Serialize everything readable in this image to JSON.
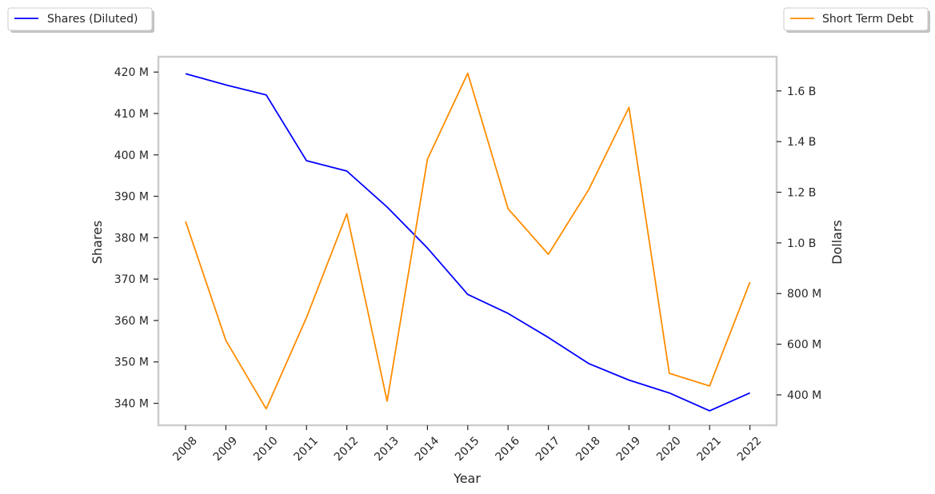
{
  "chart_data": {
    "type": "line",
    "xlabel": "Year",
    "x": [
      "2008",
      "2009",
      "2010",
      "2011",
      "2012",
      "2013",
      "2014",
      "2015",
      "2016",
      "2017",
      "2018",
      "2019",
      "2020",
      "2021",
      "2022"
    ],
    "grid": false,
    "series": [
      {
        "name": "Shares (Diluted)",
        "axis": "left",
        "color": "#0000ff",
        "values": [
          419600000,
          416900000,
          414500000,
          398600000,
          396100000,
          387400000,
          377500000,
          366300000,
          361700000,
          355900000,
          349600000,
          345600000,
          342500000,
          338200000,
          342500000
        ]
      },
      {
        "name": "Short Term Debt",
        "axis": "right",
        "color": "#ff8c00",
        "values": [
          1085000000,
          615000000,
          345000000,
          705000000,
          1115000000,
          375000000,
          1330000000,
          1670000000,
          1135000000,
          955000000,
          1210000000,
          1535000000,
          485000000,
          435000000,
          845000000
        ]
      }
    ],
    "left_axis": {
      "label": "Shares",
      "ticks": [
        340000000,
        350000000,
        360000000,
        370000000,
        380000000,
        390000000,
        400000000,
        410000000,
        420000000
      ],
      "tick_labels": [
        "340 M",
        "350 M",
        "360 M",
        "370 M",
        "380 M",
        "390 M",
        "400 M",
        "410 M",
        "420 M"
      ],
      "ylim": [
        334700000,
        423700000
      ]
    },
    "right_axis": {
      "label": "Dollars",
      "ticks": [
        400000000,
        600000000,
        800000000,
        1000000000,
        1200000000,
        1400000000,
        1600000000
      ],
      "tick_labels": [
        "400 M",
        "600 M",
        "800 M",
        "1.0 B",
        "1.2 B",
        "1.4 B",
        "1.6 B"
      ],
      "ylim": [
        280000000,
        1735000000
      ]
    },
    "legends": [
      {
        "label": "Shares (Diluted)",
        "placement": "top-left",
        "color": "#0000ff"
      },
      {
        "label": "Short Term Debt",
        "placement": "top-right",
        "color": "#ff8c00"
      }
    ]
  }
}
